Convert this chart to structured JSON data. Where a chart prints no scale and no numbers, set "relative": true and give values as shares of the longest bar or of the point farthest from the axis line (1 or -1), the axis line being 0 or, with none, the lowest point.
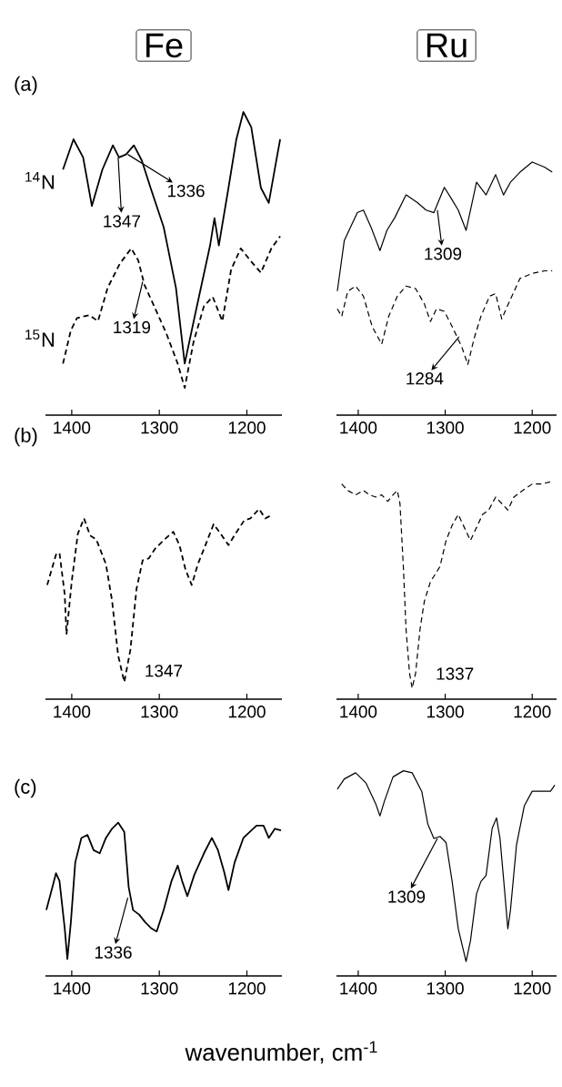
{
  "chart_data": [
    {
      "type": "line",
      "title": "Fe",
      "relative": true,
      "xlim": [
        1430,
        1160
      ],
      "xticks": [
        1400,
        1300,
        1200
      ],
      "annotations": [
        "(a)",
        {
          "text": "1347",
          "x": 1347,
          "y": 0.85
        },
        {
          "text": "1336",
          "x": 1336,
          "y": 0.86
        },
        {
          "text": "1319",
          "x": 1319,
          "y": 0.44
        }
      ],
      "series": [
        {
          "name": "$^{14}$N",
          "color": "#000000",
          "line_style": "solid",
          "x": [
            1410,
            1398,
            1387,
            1377,
            1365,
            1353,
            1346,
            1338,
            1329,
            1320,
            1310,
            1295,
            1281,
            1271,
            1260,
            1242,
            1237,
            1232,
            1221,
            1212,
            1204,
            1195,
            1184,
            1175,
            1167,
            1162
          ],
          "values": [
            0.81,
            0.91,
            0.85,
            0.69,
            0.81,
            0.89,
            0.85,
            0.86,
            0.89,
            0.84,
            0.75,
            0.62,
            0.42,
            0.17,
            0.32,
            0.56,
            0.65,
            0.56,
            0.75,
            0.91,
            1.0,
            0.95,
            0.75,
            0.7,
            0.83,
            0.91
          ]
        },
        {
          "name": "$^{15}$N",
          "color": "#000000",
          "line_style": "dashed",
          "x": [
            1410,
            1401,
            1394,
            1380,
            1370,
            1359,
            1345,
            1332,
            1324,
            1317,
            1306,
            1292,
            1279,
            1271,
            1261,
            1249,
            1239,
            1228,
            1218,
            1207,
            1196,
            1184,
            1172,
            1162
          ],
          "values": [
            0.17,
            0.28,
            0.32,
            0.33,
            0.31,
            0.42,
            0.5,
            0.55,
            0.51,
            0.43,
            0.36,
            0.27,
            0.17,
            0.09,
            0.24,
            0.36,
            0.39,
            0.31,
            0.48,
            0.55,
            0.51,
            0.47,
            0.55,
            0.59
          ]
        }
      ]
    },
    {
      "type": "line",
      "title": "Ru",
      "relative": true,
      "xlim": [
        1425,
        1172
      ],
      "xticks": [
        1400,
        1300,
        1200
      ],
      "annotations": [
        {
          "text": "1309",
          "x": 1309,
          "y": 0.81
        },
        {
          "text": "1284",
          "x": 1284,
          "y": 0.31
        }
      ],
      "series": [
        {
          "color": "#000000",
          "line_style": "solid",
          "x": [
            1424,
            1416,
            1401,
            1394,
            1385,
            1375,
            1367,
            1358,
            1345,
            1332,
            1322,
            1313,
            1301,
            1292,
            1285,
            1276,
            1264,
            1253,
            1242,
            1233,
            1225,
            1214,
            1200,
            1186,
            1177
          ],
          "values": [
            0.49,
            0.69,
            0.8,
            0.81,
            0.74,
            0.65,
            0.73,
            0.78,
            0.87,
            0.84,
            0.81,
            0.8,
            0.9,
            0.85,
            0.81,
            0.73,
            0.92,
            0.87,
            0.95,
            0.87,
            0.92,
            0.96,
            1.0,
            0.98,
            0.96
          ]
        },
        {
          "color": "#000000",
          "line_style": "dashed",
          "x": [
            1424,
            1419,
            1412,
            1403,
            1394,
            1384,
            1373,
            1365,
            1355,
            1345,
            1334,
            1324,
            1317,
            1310,
            1301,
            1292,
            1281,
            1274,
            1267,
            1259,
            1249,
            1242,
            1235,
            1226,
            1214,
            1200,
            1186,
            1177
          ],
          "values": [
            0.42,
            0.39,
            0.49,
            0.51,
            0.47,
            0.35,
            0.28,
            0.39,
            0.47,
            0.51,
            0.5,
            0.44,
            0.37,
            0.42,
            0.41,
            0.35,
            0.27,
            0.2,
            0.3,
            0.39,
            0.47,
            0.48,
            0.38,
            0.45,
            0.54,
            0.56,
            0.57,
            0.57
          ]
        }
      ]
    },
    {
      "type": "line",
      "relative": true,
      "xlim": [
        1430,
        1160
      ],
      "xticks": [
        1400,
        1300,
        1200
      ],
      "annotations": [
        "(b)",
        {
          "text": "1347",
          "x": 1347,
          "y": 0.13
        }
      ],
      "series": [
        {
          "color": "#000000",
          "line_style": "dashed",
          "x": [
            1428,
            1418,
            1414,
            1408,
            1406,
            1400,
            1393,
            1386,
            1379,
            1372,
            1361,
            1354,
            1347,
            1340,
            1333,
            1326,
            1319,
            1312,
            1305,
            1294,
            1284,
            1277,
            1270,
            1263,
            1256,
            1249,
            1238,
            1230,
            1221,
            1213,
            1203,
            1196,
            1186,
            1179,
            1171
          ],
          "values": [
            0.6,
            0.76,
            0.77,
            0.55,
            0.34,
            0.62,
            0.87,
            0.95,
            0.86,
            0.84,
            0.71,
            0.52,
            0.23,
            0.09,
            0.26,
            0.58,
            0.73,
            0.74,
            0.79,
            0.84,
            0.88,
            0.81,
            0.68,
            0.6,
            0.71,
            0.79,
            0.92,
            0.87,
            0.81,
            0.87,
            0.94,
            0.95,
            1.0,
            0.95,
            0.97
          ]
        }
      ]
    },
    {
      "type": "line",
      "relative": true,
      "xlim": [
        1425,
        1172
      ],
      "xticks": [
        1400,
        1300,
        1200
      ],
      "annotations": [
        {
          "text": "1337",
          "x": 1337,
          "y": 0.05
        }
      ],
      "series": [
        {
          "color": "#000000",
          "line_style": "dashed",
          "x": [
            1419,
            1412,
            1403,
            1394,
            1387,
            1380,
            1373,
            1366,
            1360,
            1355,
            1352,
            1348,
            1345,
            1341,
            1338,
            1334,
            1329,
            1324,
            1317,
            1306,
            1299,
            1292,
            1285,
            1278,
            1271,
            1264,
            1257,
            1250,
            1242,
            1235,
            1228,
            1221,
            1211,
            1200,
            1189,
            1179
          ],
          "values": [
            0.99,
            0.96,
            0.94,
            0.96,
            0.94,
            0.93,
            0.94,
            0.91,
            0.94,
            0.96,
            0.9,
            0.6,
            0.32,
            0.12,
            0.05,
            0.12,
            0.32,
            0.45,
            0.54,
            0.61,
            0.73,
            0.8,
            0.85,
            0.79,
            0.73,
            0.79,
            0.85,
            0.87,
            0.93,
            0.9,
            0.87,
            0.93,
            0.96,
            0.99,
            0.99,
            1.0
          ]
        }
      ]
    },
    {
      "type": "line",
      "relative": true,
      "xlim": [
        1430,
        1160
      ],
      "xticks": [
        1400,
        1300,
        1200
      ],
      "xlabel": "wavenumber, cm$^{-1}$",
      "annotations": [
        "(c)",
        {
          "text": "1336",
          "x": 1336,
          "y": 0.51
        }
      ],
      "series": [
        {
          "color": "#000000",
          "line_style": "solid",
          "x": [
            1429,
            1422,
            1418,
            1414,
            1408,
            1405,
            1401,
            1396,
            1389,
            1382,
            1375,
            1368,
            1361,
            1354,
            1347,
            1340,
            1335,
            1330,
            1323,
            1316,
            1309,
            1303,
            1295,
            1286,
            1279,
            1274,
            1268,
            1260,
            1249,
            1240,
            1233,
            1226,
            1221,
            1214,
            1204,
            1189,
            1181,
            1175,
            1168,
            1161
          ],
          "values": [
            0.43,
            0.58,
            0.67,
            0.62,
            0.31,
            0.11,
            0.35,
            0.74,
            0.9,
            0.92,
            0.82,
            0.8,
            0.9,
            0.96,
            1.0,
            0.94,
            0.58,
            0.43,
            0.4,
            0.35,
            0.31,
            0.29,
            0.43,
            0.62,
            0.72,
            0.62,
            0.52,
            0.66,
            0.8,
            0.9,
            0.82,
            0.68,
            0.56,
            0.74,
            0.9,
            0.98,
            0.98,
            0.9,
            0.96,
            0.95
          ]
        }
      ]
    },
    {
      "type": "line",
      "relative": true,
      "xlim": [
        1425,
        1172
      ],
      "xticks": [
        1400,
        1300,
        1200
      ],
      "annotations": [
        {
          "text": "1309",
          "x": 1309,
          "y": 0.67
        }
      ],
      "series": [
        {
          "color": "#000000",
          "line_style": "solid",
          "x": [
            1424,
            1416,
            1403,
            1391,
            1380,
            1375,
            1370,
            1360,
            1348,
            1338,
            1327,
            1320,
            1313,
            1306,
            1299,
            1292,
            1285,
            1276,
            1271,
            1264,
            1259,
            1253,
            1246,
            1241,
            1237,
            1232,
            1228,
            1225,
            1218,
            1209,
            1200,
            1189,
            1179,
            1174
          ],
          "values": [
            0.91,
            0.96,
            0.99,
            0.94,
            0.84,
            0.78,
            0.85,
            0.97,
            1.0,
            0.99,
            0.9,
            0.74,
            0.67,
            0.68,
            0.65,
            0.46,
            0.23,
            0.07,
            0.17,
            0.4,
            0.46,
            0.49,
            0.72,
            0.77,
            0.67,
            0.43,
            0.23,
            0.32,
            0.64,
            0.83,
            0.9,
            0.9,
            0.9,
            0.93
          ]
        }
      ]
    }
  ]
}
